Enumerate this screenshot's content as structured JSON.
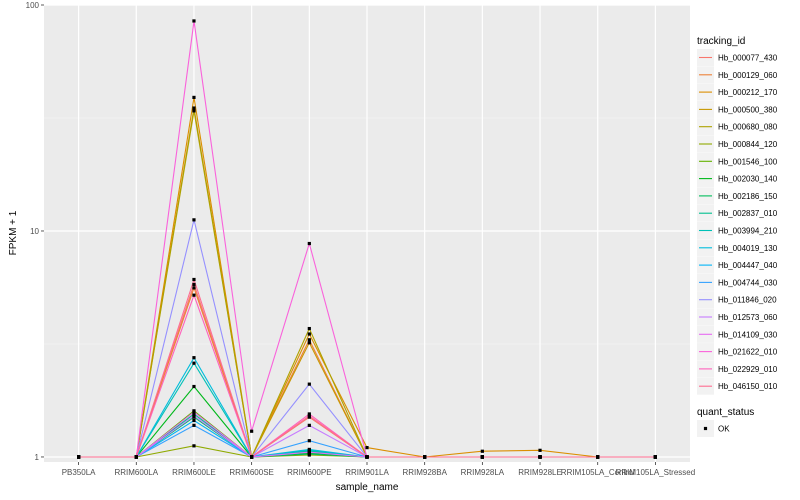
{
  "chart_data": {
    "type": "line",
    "title": "",
    "xlabel": "sample_name",
    "ylabel": "FPKM + 1",
    "y_scale": "log10",
    "ylim": [
      0.95,
      100
    ],
    "y_ticks": [
      1,
      10,
      100
    ],
    "y_tick_labels": [
      "1",
      "10",
      "100"
    ],
    "grid": true,
    "categories": [
      "PB350LA",
      "RRIM600LA",
      "RRIM600LE",
      "RRIM600SE",
      "RRIM600PE",
      "RRIM901LA",
      "RRIM928BA",
      "RRIM928LA",
      "RRIM928LE",
      "RRIM105LA_Control",
      "RRIM105LA_Stressed"
    ],
    "legend": {
      "position": "right",
      "color_title": "tracking_id",
      "shape_title": "quant_status",
      "shape_entries": [
        "OK"
      ]
    },
    "series": [
      {
        "name": "Hb_000077_430",
        "color": "#F8766D",
        "values": [
          1,
          1,
          5.8,
          1,
          1.5,
          1,
          1,
          1,
          1,
          1,
          1
        ]
      },
      {
        "name": "Hb_000129_060",
        "color": "#EC8239",
        "values": [
          1,
          1,
          5.6,
          1,
          3.3,
          1,
          1,
          1,
          1,
          1,
          1
        ]
      },
      {
        "name": "Hb_000212_170",
        "color": "#DB8E00",
        "values": [
          1,
          1,
          39,
          1,
          3.5,
          1.1,
          1,
          1.06,
          1.07,
          1,
          1
        ]
      },
      {
        "name": "Hb_000500_380",
        "color": "#C79800",
        "values": [
          1,
          1,
          35,
          1,
          3.2,
          1,
          1,
          1,
          1,
          1,
          1
        ]
      },
      {
        "name": "Hb_000680_080",
        "color": "#AEA200",
        "values": [
          1,
          1,
          34,
          1,
          3.7,
          1,
          1,
          1,
          1,
          1,
          1
        ]
      },
      {
        "name": "Hb_000844_120",
        "color": "#8FAA00",
        "values": [
          1,
          1,
          1.12,
          1,
          1.02,
          1,
          1,
          1,
          1,
          1,
          1
        ]
      },
      {
        "name": "Hb_001546_100",
        "color": "#64B200",
        "values": [
          1,
          1,
          1.6,
          1,
          1.05,
          1,
          1,
          1,
          1,
          1,
          1
        ]
      },
      {
        "name": "Hb_002030_140",
        "color": "#00B81B",
        "values": [
          1,
          1,
          2.05,
          1,
          1.04,
          1,
          1,
          1,
          1,
          1,
          1
        ]
      },
      {
        "name": "Hb_002186_150",
        "color": "#00BD5C",
        "values": [
          1,
          1,
          1.5,
          1,
          1.03,
          1,
          1,
          1,
          1,
          1,
          1
        ]
      },
      {
        "name": "Hb_002837_010",
        "color": "#00C08E",
        "values": [
          1,
          1,
          1.55,
          1,
          1.06,
          1,
          1,
          1,
          1,
          1,
          1
        ]
      },
      {
        "name": "Hb_003994_210",
        "color": "#00C1B7",
        "values": [
          1,
          1,
          2.6,
          1,
          1.07,
          1,
          1,
          1,
          1,
          1,
          1
        ]
      },
      {
        "name": "Hb_004019_130",
        "color": "#00BDDC",
        "values": [
          1,
          1,
          2.75,
          1,
          1.08,
          1,
          1,
          1,
          1,
          1,
          1
        ]
      },
      {
        "name": "Hb_004447_040",
        "color": "#00B5F7",
        "values": [
          1,
          1,
          1.45,
          1,
          1.05,
          1,
          1,
          1,
          1,
          1,
          1
        ]
      },
      {
        "name": "Hb_004744_030",
        "color": "#35A2FF",
        "values": [
          1,
          1,
          1.38,
          1,
          1.18,
          1,
          1,
          1,
          1,
          1,
          1
        ]
      },
      {
        "name": "Hb_011846_020",
        "color": "#9590FF",
        "values": [
          1,
          1,
          11.2,
          1,
          2.1,
          1,
          1,
          1,
          1,
          1,
          1
        ]
      },
      {
        "name": "Hb_012573_060",
        "color": "#C77CFF",
        "values": [
          1,
          1,
          1.52,
          1,
          1.38,
          1,
          1,
          1,
          1,
          1,
          1
        ]
      },
      {
        "name": "Hb_014109_030",
        "color": "#E76BF3",
        "values": [
          1,
          1,
          1.58,
          1,
          1.05,
          1,
          1,
          1,
          1,
          1,
          1
        ]
      },
      {
        "name": "Hb_021622_010",
        "color": "#FA62DB",
        "values": [
          1,
          1,
          85,
          1.3,
          8.8,
          1,
          1,
          1,
          1,
          1,
          1
        ]
      },
      {
        "name": "Hb_022929_010",
        "color": "#FF62BC",
        "values": [
          1,
          1,
          5.2,
          1,
          1.55,
          1,
          1,
          1,
          1,
          1,
          1
        ]
      },
      {
        "name": "Hb_046150_010",
        "color": "#FF6C91",
        "values": [
          1,
          1,
          6.1,
          1,
          1.52,
          1,
          1,
          1,
          1,
          1,
          1
        ]
      }
    ]
  }
}
